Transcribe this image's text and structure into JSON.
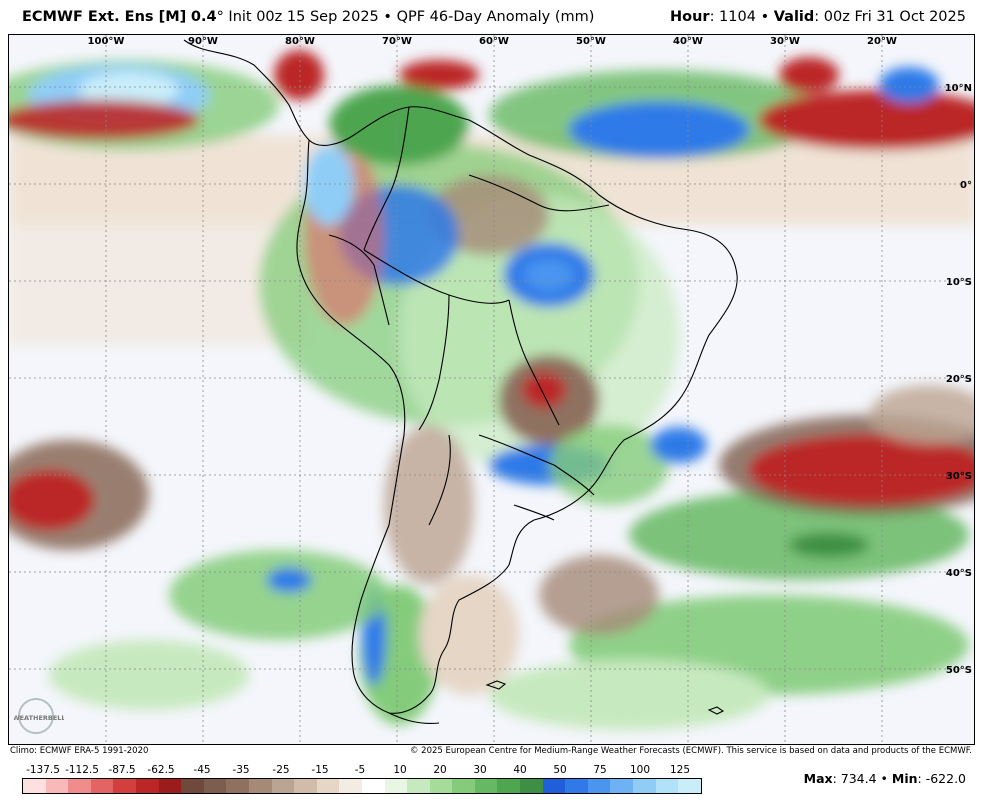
{
  "header": {
    "model": "ECMWF Ext. Ens [M]",
    "resolution": "0.4",
    "degree": "°",
    "init": "Init 00z 15 Sep 2025",
    "separator": "•",
    "product": "QPF 46-Day Anomaly (mm)",
    "hour_label": "Hour",
    "hour_value": ": 1104",
    "valid_label": "Valid",
    "valid_value": ": 00z Fri 31 Oct 2025"
  },
  "map": {
    "lon_labels": [
      "100°W",
      "90°W",
      "80°W",
      "70°W",
      "60°W",
      "50°W",
      "40°W",
      "30°W",
      "20°W"
    ],
    "lat_labels": [
      "10°N",
      "0°",
      "10°S",
      "20°S",
      "30°S",
      "40°S",
      "50°S"
    ]
  },
  "footer": {
    "climo": "Climo: ECMWF ERA-5 1991-2020",
    "copyright": "© 2025 European Centre for Medium-Range Weather Forecasts (ECMWF). This service is based on data and products of the ECMWF."
  },
  "colorbar": {
    "labels": [
      "-137.5",
      "-112.5",
      "-87.5",
      "-62.5",
      "-45",
      "-35",
      "-25",
      "-15",
      "-5",
      "10",
      "20",
      "30",
      "40",
      "50",
      "75",
      "100",
      "125"
    ],
    "colors": [
      "#fde0e0",
      "#f9b9b9",
      "#f08c8c",
      "#e46464",
      "#d33f3f",
      "#bb2727",
      "#9c1c1c",
      "#6f4a3c",
      "#7d5d4d",
      "#8f7160",
      "#a58a78",
      "#bba491",
      "#d0bca9",
      "#e5d6c6",
      "#f3ece3",
      "#ffffff",
      "#e9f6e4",
      "#c7e9bf",
      "#a5dc9a",
      "#84cc7b",
      "#66b963",
      "#4ea650",
      "#3e8f43",
      "#1f5fd9",
      "#2f7ae8",
      "#4a95f0",
      "#6cb2f4",
      "#8fcdf7",
      "#b0e3f9",
      "#c9eefa"
    ]
  },
  "stats": {
    "max_label": "Max",
    "max_value": ": 734.4",
    "sep": "•",
    "min_label": "Min",
    "min_value": ": -622.0"
  },
  "logo": {
    "text": "WEATHERBELL"
  }
}
